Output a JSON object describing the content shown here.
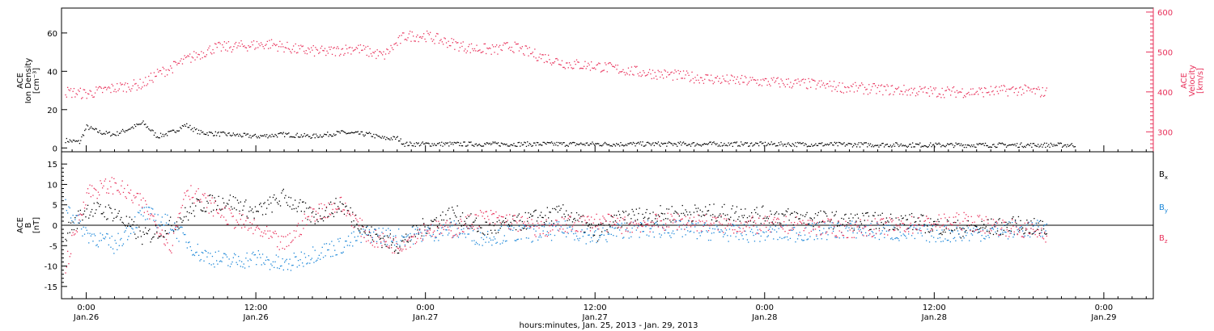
{
  "colors": {
    "black": "#000000",
    "pink": "#e8305a",
    "blue": "#1a86d8"
  },
  "x_axis": {
    "title": "hours:minutes, Jan. 25, 2013 - Jan. 29, 2013",
    "xlim": [
      "2013-01-25T22:15",
      "2013-01-29T03:30"
    ],
    "ticks": [
      {
        "t": "2013-01-26T00:00",
        "time": "0:00",
        "date": "Jan.26"
      },
      {
        "t": "2013-01-26T12:00",
        "time": "12:00",
        "date": "Jan.26"
      },
      {
        "t": "2013-01-27T00:00",
        "time": "0:00",
        "date": "Jan.27"
      },
      {
        "t": "2013-01-27T12:00",
        "time": "12:00",
        "date": "Jan.27"
      },
      {
        "t": "2013-01-28T00:00",
        "time": "0:00",
        "date": "Jan.28"
      },
      {
        "t": "2013-01-28T12:00",
        "time": "12:00",
        "date": "Jan.28"
      },
      {
        "t": "2013-01-29T00:00",
        "time": "0:00",
        "date": "Jan.29"
      }
    ]
  },
  "chart_data": [
    {
      "type": "scatter",
      "panel": "plasma",
      "left_axis": {
        "label_lines": [
          "ACE",
          "Ion Density",
          "[cm⁻³]"
        ],
        "ylim": [
          -2,
          73
        ],
        "ticks": [
          0,
          20,
          40,
          60
        ]
      },
      "right_axis": {
        "label_lines": [
          "ACE",
          "Velocity",
          "[km/s]"
        ],
        "ylim": [
          250,
          610
        ],
        "ticks": [
          300,
          400,
          500,
          600
        ]
      },
      "series": [
        {
          "axis": "left",
          "color": "black",
          "points": [
            [
              "2013-01-25T22:30",
              4
            ],
            [
              "2013-01-25T23:30",
              3
            ],
            [
              "2013-01-26T00:00",
              11
            ],
            [
              "2013-01-26T01:00",
              8
            ],
            [
              "2013-01-26T02:00",
              7
            ],
            [
              "2013-01-26T03:00",
              10
            ],
            [
              "2013-01-26T04:00",
              13
            ],
            [
              "2013-01-26T05:00",
              6
            ],
            [
              "2013-01-26T06:00",
              8
            ],
            [
              "2013-01-26T07:00",
              12
            ],
            [
              "2013-01-26T08:00",
              8
            ],
            [
              "2013-01-26T10:00",
              7
            ],
            [
              "2013-01-26T12:00",
              6
            ],
            [
              "2013-01-26T14:00",
              7
            ],
            [
              "2013-01-26T16:00",
              6
            ],
            [
              "2013-01-26T18:00",
              8
            ],
            [
              "2013-01-26T20:00",
              7
            ],
            [
              "2013-01-26T21:00",
              5
            ],
            [
              "2013-01-26T22:00",
              5
            ],
            [
              "2013-01-26T22:30",
              2
            ],
            [
              "2013-01-27T00:00",
              2
            ],
            [
              "2013-01-27T06:00",
              2
            ],
            [
              "2013-01-27T12:00",
              2
            ],
            [
              "2013-01-27T18:00",
              2
            ],
            [
              "2013-01-28T00:00",
              2
            ],
            [
              "2013-01-28T12:00",
              1.5
            ],
            [
              "2013-01-28T22:00",
              1.5
            ]
          ]
        },
        {
          "axis": "right",
          "color": "pink",
          "points": [
            [
              "2013-01-25T22:30",
              400
            ],
            [
              "2013-01-26T00:00",
              395
            ],
            [
              "2013-01-26T02:00",
              410
            ],
            [
              "2013-01-26T04:00",
              420
            ],
            [
              "2013-01-26T05:00",
              445
            ],
            [
              "2013-01-26T06:00",
              460
            ],
            [
              "2013-01-26T07:00",
              480
            ],
            [
              "2013-01-26T09:00",
              510
            ],
            [
              "2013-01-26T11:00",
              515
            ],
            [
              "2013-01-26T13:00",
              520
            ],
            [
              "2013-01-26T15:00",
              505
            ],
            [
              "2013-01-26T17:00",
              500
            ],
            [
              "2013-01-26T19:00",
              510
            ],
            [
              "2013-01-26T21:00",
              490
            ],
            [
              "2013-01-26T22:30",
              540
            ],
            [
              "2013-01-27T00:00",
              540
            ],
            [
              "2013-01-27T01:00",
              530
            ],
            [
              "2013-01-27T03:00",
              510
            ],
            [
              "2013-01-27T05:00",
              505
            ],
            [
              "2013-01-27T06:00",
              515
            ],
            [
              "2013-01-27T08:00",
              490
            ],
            [
              "2013-01-27T10:00",
              470
            ],
            [
              "2013-01-27T12:00",
              465
            ],
            [
              "2013-01-27T15:00",
              450
            ],
            [
              "2013-01-27T18:00",
              440
            ],
            [
              "2013-01-27T21:00",
              430
            ],
            [
              "2013-01-28T00:00",
              425
            ],
            [
              "2013-01-28T03:00",
              420
            ],
            [
              "2013-01-28T06:00",
              410
            ],
            [
              "2013-01-28T09:00",
              405
            ],
            [
              "2013-01-28T12:00",
              400
            ],
            [
              "2013-01-28T15:00",
              400
            ],
            [
              "2013-01-28T18:00",
              405
            ],
            [
              "2013-01-28T20:00",
              398
            ]
          ]
        }
      ]
    },
    {
      "type": "scatter",
      "panel": "magnetic",
      "left_axis": {
        "label_lines": [
          "ACE",
          "B",
          "[nT]"
        ],
        "ylim": [
          -18,
          18
        ],
        "ticks": [
          -15,
          -10,
          -5,
          0,
          5,
          10,
          15
        ]
      },
      "zero_line": true,
      "legend": {
        "position": "right",
        "entries": [
          {
            "base": "B",
            "sub": "x",
            "color": "black"
          },
          {
            "base": "B",
            "sub": "y",
            "color": "blue"
          },
          {
            "base": "B",
            "sub": "z",
            "color": "pink"
          }
        ]
      },
      "series": [
        {
          "name": "Bx",
          "color": "black",
          "points": [
            [
              "2013-01-25T22:30",
              -2
            ],
            [
              "2013-01-26T00:00",
              4
            ],
            [
              "2013-01-26T02:00",
              3
            ],
            [
              "2013-01-26T04:00",
              -3
            ],
            [
              "2013-01-26T06:00",
              0
            ],
            [
              "2013-01-26T08:00",
              5
            ],
            [
              "2013-01-26T10:00",
              6
            ],
            [
              "2013-01-26T12:00",
              3
            ],
            [
              "2013-01-26T14:00",
              7
            ],
            [
              "2013-01-26T16:00",
              2
            ],
            [
              "2013-01-26T18:00",
              5
            ],
            [
              "2013-01-26T20:00",
              -2
            ],
            [
              "2013-01-26T22:00",
              -5
            ],
            [
              "2013-01-27T00:00",
              0
            ],
            [
              "2013-01-27T02:00",
              3
            ],
            [
              "2013-01-27T04:00",
              -1
            ],
            [
              "2013-01-27T06:00",
              0
            ],
            [
              "2013-01-27T08:00",
              2
            ],
            [
              "2013-01-27T10:00",
              3
            ],
            [
              "2013-01-27T12:00",
              -2
            ],
            [
              "2013-01-27T14:00",
              2
            ],
            [
              "2013-01-27T18:00",
              3
            ],
            [
              "2013-01-27T22:00",
              3
            ],
            [
              "2013-01-28T02:00",
              2
            ],
            [
              "2013-01-28T06:00",
              1
            ],
            [
              "2013-01-28T10:00",
              1
            ],
            [
              "2013-01-28T14:00",
              -1
            ],
            [
              "2013-01-28T18:00",
              0
            ],
            [
              "2013-01-28T20:00",
              -1
            ]
          ]
        },
        {
          "name": "By",
          "color": "blue",
          "points": [
            [
              "2013-01-25T22:30",
              5
            ],
            [
              "2013-01-26T00:00",
              -2
            ],
            [
              "2013-01-26T02:00",
              -5
            ],
            [
              "2013-01-26T04:00",
              3
            ],
            [
              "2013-01-26T06:00",
              0
            ],
            [
              "2013-01-26T08:00",
              -7
            ],
            [
              "2013-01-26T10:00",
              -9
            ],
            [
              "2013-01-26T12:00",
              -8
            ],
            [
              "2013-01-26T14:00",
              -10
            ],
            [
              "2013-01-26T16:00",
              -7
            ],
            [
              "2013-01-26T18:00",
              -5
            ],
            [
              "2013-01-26T20:00",
              -2
            ],
            [
              "2013-01-26T22:00",
              -3
            ],
            [
              "2013-01-27T00:00",
              -2
            ],
            [
              "2013-01-27T02:00",
              -1
            ],
            [
              "2013-01-27T04:00",
              -3
            ],
            [
              "2013-01-27T06:00",
              -2
            ],
            [
              "2013-01-27T08:00",
              -2
            ],
            [
              "2013-01-27T10:00",
              -1
            ],
            [
              "2013-01-27T12:00",
              -3
            ],
            [
              "2013-01-27T14:00",
              -1
            ],
            [
              "2013-01-27T18:00",
              -1
            ],
            [
              "2013-01-27T22:00",
              -2
            ],
            [
              "2013-01-28T02:00",
              -2
            ],
            [
              "2013-01-28T06:00",
              -1
            ],
            [
              "2013-01-28T10:00",
              -2
            ],
            [
              "2013-01-28T14:00",
              -2
            ],
            [
              "2013-01-28T18:00",
              -1
            ],
            [
              "2013-01-28T20:00",
              -1
            ]
          ]
        },
        {
          "name": "Bz",
          "color": "pink",
          "points": [
            [
              "2013-01-25T22:30",
              -10
            ],
            [
              "2013-01-26T00:00",
              8
            ],
            [
              "2013-01-26T02:00",
              10
            ],
            [
              "2013-01-26T04:00",
              5
            ],
            [
              "2013-01-26T06:00",
              -5
            ],
            [
              "2013-01-26T07:00",
              9
            ],
            [
              "2013-01-26T10:00",
              2
            ],
            [
              "2013-01-26T12:00",
              -1
            ],
            [
              "2013-01-26T14:00",
              -5
            ],
            [
              "2013-01-26T16:00",
              3
            ],
            [
              "2013-01-26T18:00",
              5
            ],
            [
              "2013-01-26T20:00",
              -3
            ],
            [
              "2013-01-26T22:00",
              -5
            ],
            [
              "2013-01-27T00:00",
              -1
            ],
            [
              "2013-01-27T02:00",
              -1
            ],
            [
              "2013-01-27T04:00",
              2
            ],
            [
              "2013-01-27T06:00",
              1
            ],
            [
              "2013-01-27T08:00",
              -1
            ],
            [
              "2013-01-27T10:00",
              0
            ],
            [
              "2013-01-27T12:00",
              1
            ],
            [
              "2013-01-27T14:00",
              0
            ],
            [
              "2013-01-27T18:00",
              1
            ],
            [
              "2013-01-27T22:00",
              0
            ],
            [
              "2013-01-28T02:00",
              0
            ],
            [
              "2013-01-28T06:00",
              -1
            ],
            [
              "2013-01-28T10:00",
              0
            ],
            [
              "2013-01-28T14:00",
              1
            ],
            [
              "2013-01-28T18:00",
              -1
            ],
            [
              "2013-01-28T20:00",
              -2
            ]
          ]
        }
      ]
    }
  ]
}
